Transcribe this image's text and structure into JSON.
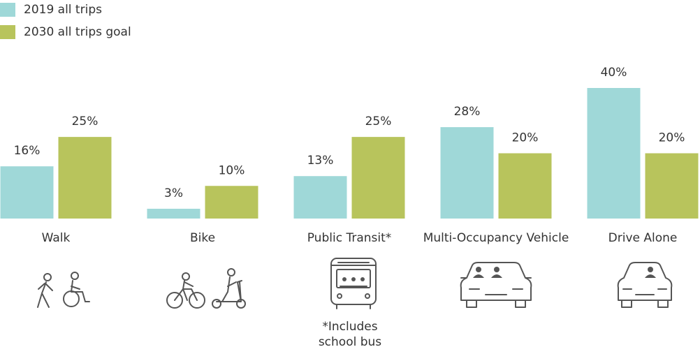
{
  "chart_data": {
    "type": "bar",
    "categories": [
      "Walk",
      "Bike",
      "Public Transit*",
      "Multi-Occupancy Vehicle",
      "Drive Alone"
    ],
    "series": [
      {
        "name": "2019 all trips",
        "color": "#9fd8d8",
        "values": [
          16,
          3,
          13,
          28,
          40
        ],
        "value_labels": [
          "16%",
          "3%",
          "13%",
          "28%",
          "40%"
        ]
      },
      {
        "name": "2030 all trips goal",
        "color": "#b8c45c",
        "values": [
          25,
          10,
          25,
          20,
          20
        ],
        "value_labels": [
          "25%",
          "10%",
          "25%",
          "20%",
          "20%"
        ]
      }
    ],
    "legend": "top-left",
    "annotation": [
      "*Includes",
      "school bus"
    ]
  }
}
